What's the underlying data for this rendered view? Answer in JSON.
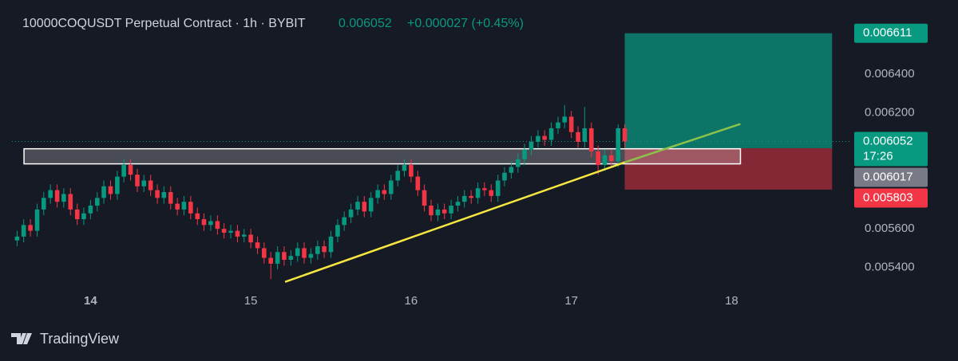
{
  "header": {
    "symbol": "10000COQUSDT Perpetual Contract · 1h · BYBIT",
    "price": "0.006052",
    "change": "+0.000027 (+0.45%)"
  },
  "chart_data": {
    "type": "candlestick",
    "x": [
      13.542,
      13.583,
      13.625,
      13.667,
      13.708,
      13.75,
      13.792,
      13.833,
      13.875,
      13.917,
      13.958,
      14,
      14.042,
      14.083,
      14.125,
      14.167,
      14.208,
      14.25,
      14.292,
      14.333,
      14.375,
      14.417,
      14.458,
      14.5,
      14.542,
      14.583,
      14.625,
      14.667,
      14.708,
      14.75,
      14.792,
      14.833,
      14.875,
      14.917,
      14.958,
      15,
      15.042,
      15.083,
      15.125,
      15.167,
      15.208,
      15.25,
      15.292,
      15.333,
      15.375,
      15.417,
      15.458,
      15.5,
      15.542,
      15.583,
      15.625,
      15.667,
      15.708,
      15.75,
      15.792,
      15.833,
      15.875,
      15.917,
      15.958,
      16,
      16.042,
      16.083,
      16.125,
      16.167,
      16.208,
      16.25,
      16.292,
      16.333,
      16.375,
      16.417,
      16.458,
      16.5,
      16.542,
      16.583,
      16.625,
      16.667,
      16.708,
      16.75,
      16.792,
      16.833,
      16.875,
      16.917,
      16.958,
      17,
      17.042,
      17.083,
      17.125,
      17.167,
      17.208,
      17.25,
      17.292,
      17.333
    ],
    "open": [
      0.00554,
      0.00556,
      0.00562,
      0.00559,
      0.0057,
      0.00576,
      0.0058,
      0.00574,
      0.00578,
      0.0057,
      0.00565,
      0.00568,
      0.00572,
      0.00576,
      0.00582,
      0.00578,
      0.00587,
      0.00593,
      0.00588,
      0.00582,
      0.00585,
      0.0058,
      0.00576,
      0.00579,
      0.00573,
      0.0057,
      0.00574,
      0.00568,
      0.00565,
      0.00562,
      0.00564,
      0.0056,
      0.00558,
      0.00559,
      0.00556,
      0.00557,
      0.00553,
      0.0055,
      0.00545,
      0.00542,
      0.00548,
      0.00544,
      0.00546,
      0.0055,
      0.00545,
      0.00547,
      0.00551,
      0.00548,
      0.00556,
      0.00562,
      0.00566,
      0.0057,
      0.00574,
      0.00569,
      0.00576,
      0.0058,
      0.00578,
      0.00585,
      0.0059,
      0.00593,
      0.00587,
      0.0058,
      0.00572,
      0.00567,
      0.0057,
      0.00568,
      0.00572,
      0.00574,
      0.00577,
      0.00576,
      0.00581,
      0.0058,
      0.00577,
      0.00585,
      0.00589,
      0.00592,
      0.00596,
      0.00601,
      0.00605,
      0.00608,
      0.00606,
      0.00612,
      0.00615,
      0.00618,
      0.0061,
      0.00605,
      0.00612,
      0.006,
      0.00593,
      0.00598,
      0.00595,
      0.00612
    ],
    "high": [
      0.00559,
      0.00565,
      0.00565,
      0.00573,
      0.00579,
      0.00583,
      0.00583,
      0.00581,
      0.00581,
      0.00573,
      0.00571,
      0.00575,
      0.00579,
      0.00585,
      0.00585,
      0.0059,
      0.00596,
      0.00596,
      0.00591,
      0.00588,
      0.00588,
      0.00583,
      0.00582,
      0.00582,
      0.00576,
      0.00577,
      0.00577,
      0.00571,
      0.00568,
      0.00567,
      0.00567,
      0.00563,
      0.00562,
      0.00562,
      0.0056,
      0.0056,
      0.00556,
      0.00553,
      0.00548,
      0.00551,
      0.00551,
      0.00549,
      0.00553,
      0.00553,
      0.0055,
      0.00554,
      0.00554,
      0.00559,
      0.00565,
      0.00569,
      0.00573,
      0.00577,
      0.00577,
      0.00579,
      0.00583,
      0.00583,
      0.00588,
      0.00593,
      0.00596,
      0.00596,
      0.0059,
      0.00583,
      0.00575,
      0.00573,
      0.00573,
      0.00575,
      0.00577,
      0.0058,
      0.0058,
      0.00584,
      0.00584,
      0.00583,
      0.00588,
      0.00592,
      0.00595,
      0.00599,
      0.00604,
      0.00608,
      0.00611,
      0.00611,
      0.00615,
      0.00618,
      0.00624,
      0.00621,
      0.00613,
      0.00623,
      0.00615,
      0.00603,
      0.00601,
      0.00601,
      0.00614,
      0.00614
    ],
    "low": [
      0.00551,
      0.00553,
      0.00556,
      0.00556,
      0.00567,
      0.00573,
      0.00571,
      0.00571,
      0.00567,
      0.00562,
      0.00562,
      0.00565,
      0.00569,
      0.00573,
      0.00575,
      0.00575,
      0.00584,
      0.00585,
      0.00579,
      0.00579,
      0.00577,
      0.00573,
      0.00573,
      0.0057,
      0.00567,
      0.00567,
      0.00565,
      0.00562,
      0.00559,
      0.00559,
      0.00557,
      0.00555,
      0.00555,
      0.00553,
      0.00553,
      0.0055,
      0.00547,
      0.00542,
      0.00534,
      0.00539,
      0.00541,
      0.00541,
      0.00543,
      0.00542,
      0.00542,
      0.00544,
      0.00545,
      0.00545,
      0.00553,
      0.00559,
      0.00563,
      0.00567,
      0.00566,
      0.00566,
      0.00573,
      0.00575,
      0.00575,
      0.00582,
      0.00587,
      0.00584,
      0.00577,
      0.00569,
      0.00564,
      0.00564,
      0.00565,
      0.00565,
      0.00569,
      0.00571,
      0.00573,
      0.00573,
      0.00577,
      0.00574,
      0.00574,
      0.00582,
      0.00586,
      0.00589,
      0.00593,
      0.00598,
      0.00602,
      0.00603,
      0.00603,
      0.00609,
      0.00612,
      0.00607,
      0.00602,
      0.00602,
      0.00597,
      0.00588,
      0.0059,
      0.00592,
      0.00592,
      0.00602
    ],
    "close": [
      0.00556,
      0.00562,
      0.00559,
      0.0057,
      0.00576,
      0.0058,
      0.00574,
      0.00578,
      0.0057,
      0.00565,
      0.00568,
      0.00572,
      0.00576,
      0.00582,
      0.00578,
      0.00587,
      0.00593,
      0.00588,
      0.00582,
      0.00585,
      0.0058,
      0.00576,
      0.00579,
      0.00573,
      0.0057,
      0.00574,
      0.00568,
      0.00565,
      0.00562,
      0.00564,
      0.0056,
      0.00558,
      0.00559,
      0.00556,
      0.00557,
      0.00553,
      0.0055,
      0.00545,
      0.00542,
      0.00548,
      0.00544,
      0.00546,
      0.0055,
      0.00545,
      0.00547,
      0.00551,
      0.00548,
      0.00556,
      0.00562,
      0.00566,
      0.0057,
      0.00574,
      0.00569,
      0.00576,
      0.0058,
      0.00578,
      0.00585,
      0.0059,
      0.00593,
      0.00587,
      0.0058,
      0.00572,
      0.00567,
      0.0057,
      0.00568,
      0.00572,
      0.00574,
      0.00577,
      0.00576,
      0.00581,
      0.0058,
      0.00577,
      0.00585,
      0.00589,
      0.00592,
      0.00596,
      0.00601,
      0.00605,
      0.00608,
      0.00606,
      0.00612,
      0.00615,
      0.00618,
      0.0061,
      0.00605,
      0.00612,
      0.006,
      0.00593,
      0.00598,
      0.00595,
      0.00612,
      0.006052
    ],
    "up_color": "#089981",
    "down_color": "#f23645",
    "xlim": [
      13.51,
      18.74
    ],
    "xticks": [
      14,
      15,
      16,
      17,
      18
    ],
    "ylim": [
      0.0053,
      0.00675
    ],
    "yticks": [
      {
        "value": 0.0064,
        "label": "0.006400"
      },
      {
        "value": 0.0062,
        "label": "0.006200"
      },
      {
        "value": 0.0056,
        "label": "0.005600"
      },
      {
        "value": 0.0054,
        "label": "0.005400"
      }
    ],
    "price_tags": [
      {
        "value": 0.006611,
        "color": "#089981"
      },
      {
        "value": 0.006052,
        "color": "#089981",
        "countdown": "17:26"
      },
      {
        "value": 0.006017,
        "color": "#787b86"
      },
      {
        "value": 0.005803,
        "color": "#f23645"
      }
    ],
    "position": {
      "x": [
        17.333,
        18.627
      ],
      "entry": 0.006017,
      "target": 0.006611,
      "stop": 0.005803
    },
    "zone": {
      "x": [
        13.585,
        18.055
      ],
      "y": [
        0.005936,
        0.006014
      ]
    },
    "trendlines": [
      {
        "x": [
          15.214,
          17.333
        ],
        "y": [
          0.005326,
          0.005944
        ],
        "color": "#f5e642"
      },
      {
        "x": [
          17.333,
          18.055
        ],
        "y": [
          0.005944,
          0.006142
        ],
        "color": "#8bc34a"
      }
    ]
  },
  "footer": {
    "brand": "TradingView"
  }
}
